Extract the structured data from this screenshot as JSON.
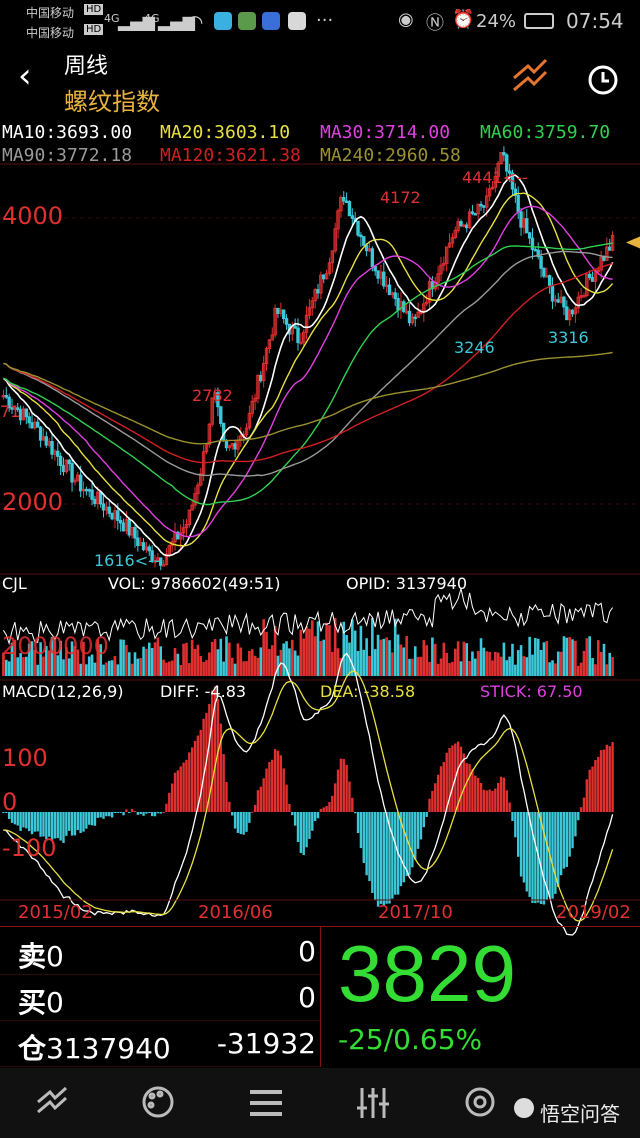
{
  "status_bar": {
    "carrier1": "中国移动",
    "carrier2": "中国移动",
    "network1": "HD",
    "network2": "HD",
    "signal1": "4G",
    "signal2": "4G",
    "battery": "24%",
    "time": "07:54"
  },
  "header": {
    "period": "周线",
    "name": "螺纹指数"
  },
  "ma_labels": {
    "ma10": "MA10:3693.00",
    "ma20": "MA20:3603.10",
    "ma30": "MA30:3714.00",
    "ma60": "MA60:3759.70",
    "ma90": "MA90:3772.18",
    "ma120": "MA120:3621.38",
    "ma240": "MA240:2960.58"
  },
  "colors": {
    "up": "#e03030",
    "down": "#3cc8d8",
    "ma10": "#ffffff",
    "ma20": "#e8e040",
    "ma30": "#e040e0",
    "ma60": "#30d050",
    "ma90": "#9a9a9a",
    "ma120": "#d02020",
    "ma240": "#9a9030",
    "accent": "#e8b33d",
    "price": "#33dd33"
  },
  "main_chart": {
    "y_labels": [
      "4000",
      "2000"
    ],
    "annotations": {
      "high": "4441<--",
      "a4172": "4172",
      "a2782": "2782",
      "a3246": "3246",
      "a3316": "3316",
      "low": "1616<--",
      "cut": "71"
    }
  },
  "volume": {
    "title": "CJL",
    "vol": "VOL: 9786602(49:51)",
    "opid": "OPID: 3137940",
    "overlay": "2000000"
  },
  "macd": {
    "title": "MACD(12,26,9)",
    "diff": "DIFF: -4.83",
    "dea": "DEA: -38.58",
    "stick": "STICK: 67.50",
    "y_labels": [
      "100",
      "0",
      "-100"
    ]
  },
  "dates": [
    "2015/02",
    "2016/06",
    "2017/10",
    "2019/02"
  ],
  "quote": {
    "sell_label": "卖",
    "sell_val": "0",
    "sell_right": "0",
    "buy_label": "买",
    "buy_val": "0",
    "buy_right": "0",
    "pos_label": "仓",
    "pos_val": "3137940",
    "pos_change": "-31932",
    "price": "3829",
    "change": "-25/0.65%"
  },
  "watermark": "悟空问答",
  "chart_data": {
    "type": "candlestick",
    "title": "螺纹指数",
    "x_ticks": [
      "2015/02",
      "2016/06",
      "2017/10",
      "2019/02"
    ],
    "price_markers": [
      {
        "label": "1616",
        "value": 1616
      },
      {
        "label": "2782",
        "value": 2782
      },
      {
        "label": "4172",
        "value": 4172
      },
      {
        "label": "3246",
        "value": 3246
      },
      {
        "label": "4441",
        "value": 4441
      },
      {
        "label": "3316",
        "value": 3316
      }
    ],
    "last_price": 3829,
    "ma": [
      {
        "name": "MA10",
        "value": 3693.0
      },
      {
        "name": "MA20",
        "value": 3603.1
      },
      {
        "name": "MA30",
        "value": 3714.0
      },
      {
        "name": "MA60",
        "value": 3759.7
      },
      {
        "name": "MA90",
        "value": 3772.18
      },
      {
        "name": "MA120",
        "value": 3621.38
      },
      {
        "name": "MA240",
        "value": 2960.58
      }
    ],
    "macd": {
      "diff": -4.83,
      "dea": -38.58,
      "stick": 67.5
    }
  }
}
